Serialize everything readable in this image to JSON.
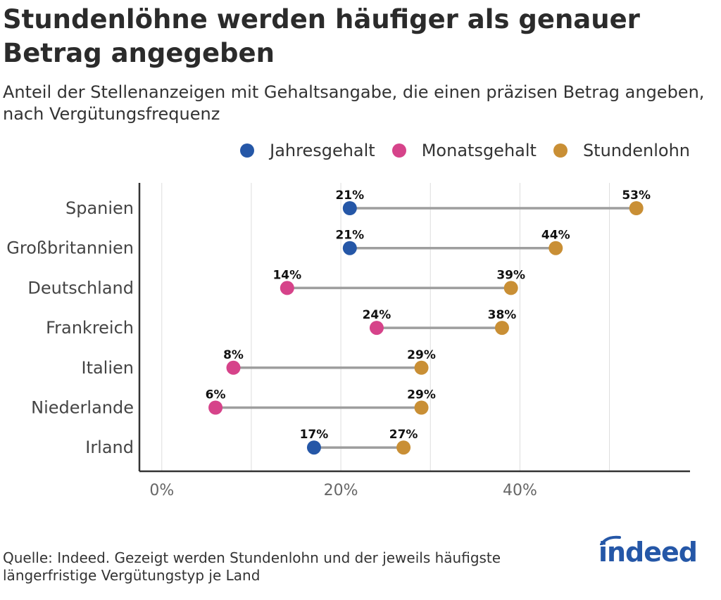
{
  "title": "Stundenlöhne werden häufiger als genauer Betrag angegeben",
  "subtitle": "Anteil der Stellenanzeigen mit Gehaltsangabe, die einen präzisen Betrag angeben, nach Vergütungsfrequenz",
  "source": "Quelle: Indeed. Gezeigt werden Stundenlohn und der jeweils häufigste längerfristige Vergütungstyp je Land",
  "logo_text": "indeed",
  "colors": {
    "Jahresgehalt": "#2557a7",
    "Monatsgehalt": "#d6438a",
    "Stundenlohn": "#c98f35",
    "connector": "#9e9e9e",
    "grid": "#dddddd",
    "axis": "#333333"
  },
  "chart_data": {
    "type": "dumbbell",
    "legend": [
      "Jahresgehalt",
      "Monatsgehalt",
      "Stundenlohn"
    ],
    "legend_position": "top-right",
    "x_ticks": [
      "0%",
      "20%",
      "40%"
    ],
    "x_tick_values": [
      0,
      20,
      40
    ],
    "xlim": [
      -2.5,
      59
    ],
    "grid": "vertical",
    "rows": [
      {
        "country": "Spanien",
        "long_type": "Jahresgehalt",
        "long_value": 21,
        "long_label": "21%",
        "hourly_value": 53,
        "hourly_label": "53%"
      },
      {
        "country": "Großbritannien",
        "long_type": "Jahresgehalt",
        "long_value": 21,
        "long_label": "21%",
        "hourly_value": 44,
        "hourly_label": "44%"
      },
      {
        "country": "Deutschland",
        "long_type": "Monatsgehalt",
        "long_value": 14,
        "long_label": "14%",
        "hourly_value": 39,
        "hourly_label": "39%"
      },
      {
        "country": "Frankreich",
        "long_type": "Monatsgehalt",
        "long_value": 24,
        "long_label": "24%",
        "hourly_value": 38,
        "hourly_label": "38%"
      },
      {
        "country": "Italien",
        "long_type": "Monatsgehalt",
        "long_value": 8,
        "long_label": "8%",
        "hourly_value": 29,
        "hourly_label": "29%"
      },
      {
        "country": "Niederlande",
        "long_type": "Monatsgehalt",
        "long_value": 6,
        "long_label": "6%",
        "hourly_value": 29,
        "hourly_label": "29%"
      },
      {
        "country": "Irland",
        "long_type": "Jahresgehalt",
        "long_value": 17,
        "long_label": "17%",
        "hourly_value": 27,
        "hourly_label": "27%"
      }
    ]
  }
}
